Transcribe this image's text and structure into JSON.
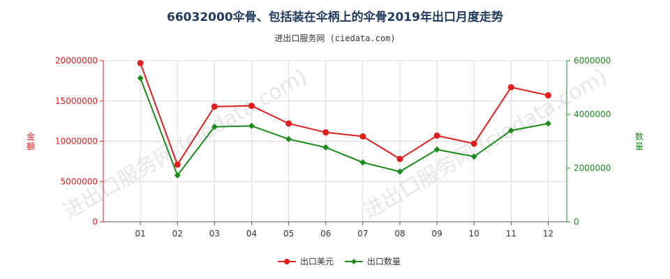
{
  "title": "66032000伞骨、包括装在伞柄上的伞骨2019年出口月度走势",
  "subtitle": "进出口服务网 (ciedata.com)",
  "watermark": "进出口服务网 (ciedata.com)",
  "colors": {
    "left_axis": "#e01e1e",
    "right_axis": "#1a8a1a",
    "grid": "#d9d9d9",
    "title": "#1f3a5c"
  },
  "chart_data": {
    "type": "line",
    "categories": [
      "01",
      "02",
      "03",
      "04",
      "05",
      "06",
      "07",
      "08",
      "09",
      "10",
      "11",
      "12"
    ],
    "y_left": {
      "label": "金额",
      "range": [
        0,
        20000000
      ],
      "ticks": [
        "0",
        "5000000",
        "10000000",
        "15000000",
        "20000000"
      ]
    },
    "y_right": {
      "label": "数量",
      "range": [
        0,
        6000000
      ],
      "ticks": [
        "0",
        "2000000",
        "4000000",
        "6000000"
      ]
    },
    "grid": true,
    "legend_position": "bottom-center",
    "series": [
      {
        "name": "出口美元",
        "axis": "left",
        "color": "#e01e1e",
        "marker": "circle",
        "values": [
          19700000,
          7100000,
          14300000,
          14400000,
          12200000,
          11100000,
          10600000,
          7800000,
          10700000,
          9700000,
          16700000,
          15700000
        ]
      },
      {
        "name": "出口数量",
        "axis": "right",
        "color": "#1a8a1a",
        "marker": "diamond",
        "values": [
          5350000,
          1730000,
          3540000,
          3570000,
          3080000,
          2770000,
          2210000,
          1870000,
          2690000,
          2430000,
          3400000,
          3660000
        ]
      }
    ]
  }
}
